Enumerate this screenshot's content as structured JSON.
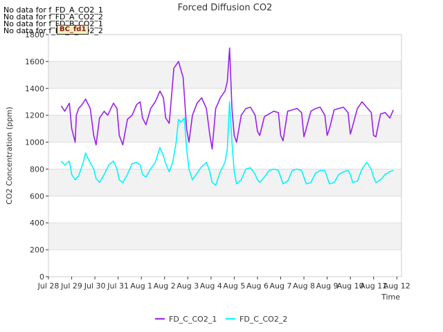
{
  "chart_data": {
    "type": "line",
    "title": "Forced Diffusion CO2",
    "xlabel": "Time",
    "ylabel": "CO2 Concentration (ppm)",
    "ylim": [
      0,
      1800
    ],
    "xlim": [
      0,
      15.2
    ],
    "yticks": [
      0,
      200,
      400,
      600,
      800,
      1000,
      1200,
      1400,
      1600,
      1800
    ],
    "xticks": [
      {
        "pos": 0,
        "label": "Jul 28"
      },
      {
        "pos": 1,
        "label": "Jul 29"
      },
      {
        "pos": 2,
        "label": "Jul 30"
      },
      {
        "pos": 3,
        "label": "Jul 31"
      },
      {
        "pos": 4,
        "label": "Aug 1"
      },
      {
        "pos": 5,
        "label": "Aug 2"
      },
      {
        "pos": 6,
        "label": "Aug 3"
      },
      {
        "pos": 7,
        "label": "Aug 4"
      },
      {
        "pos": 8,
        "label": "Aug 5"
      },
      {
        "pos": 9,
        "label": "Aug 6"
      },
      {
        "pos": 10,
        "label": "Aug 7"
      },
      {
        "pos": 11,
        "label": "Aug 8"
      },
      {
        "pos": 12,
        "label": "Aug 9"
      },
      {
        "pos": 13,
        "label": "Aug 10"
      },
      {
        "pos": 14,
        "label": "Aug 11"
      },
      {
        "pos": 15,
        "label": "Aug 12"
      }
    ],
    "series": [
      {
        "name": "FD_C_CO2_1",
        "color": "#9b1fe8",
        "x": [
          0.55,
          0.7,
          0.9,
          1.0,
          1.15,
          1.2,
          1.3,
          1.45,
          1.6,
          1.8,
          1.95,
          2.05,
          2.2,
          2.4,
          2.55,
          2.8,
          2.95,
          3.05,
          3.2,
          3.4,
          3.6,
          3.8,
          3.95,
          4.05,
          4.2,
          4.4,
          4.6,
          4.8,
          4.95,
          5.05,
          5.2,
          5.4,
          5.6,
          5.8,
          5.95,
          6.05,
          6.2,
          6.4,
          6.6,
          6.8,
          6.95,
          7.05,
          7.2,
          7.4,
          7.6,
          7.7,
          7.8,
          7.9,
          8.0,
          8.1,
          8.3,
          8.5,
          8.7,
          8.9,
          9.0,
          9.1,
          9.3,
          9.5,
          9.7,
          9.9,
          10.0,
          10.1,
          10.3,
          10.5,
          10.7,
          10.9,
          11.0,
          11.1,
          11.3,
          11.5,
          11.7,
          11.9,
          12.0,
          12.1,
          12.3,
          12.5,
          12.7,
          12.9,
          13.0,
          13.1,
          13.3,
          13.5,
          13.7,
          13.9,
          14.0,
          14.1,
          14.3,
          14.5,
          14.7,
          14.85
        ],
        "y": [
          1270,
          1230,
          1290,
          1100,
          1000,
          1200,
          1250,
          1280,
          1320,
          1250,
          1050,
          980,
          1180,
          1230,
          1200,
          1290,
          1250,
          1050,
          980,
          1170,
          1200,
          1280,
          1300,
          1180,
          1130,
          1250,
          1300,
          1380,
          1330,
          1180,
          1140,
          1550,
          1600,
          1480,
          1100,
          1000,
          1200,
          1290,
          1330,
          1250,
          1050,
          950,
          1250,
          1330,
          1380,
          1450,
          1700,
          1250,
          1050,
          1000,
          1200,
          1250,
          1260,
          1200,
          1080,
          1050,
          1190,
          1210,
          1230,
          1220,
          1050,
          1010,
          1230,
          1240,
          1250,
          1220,
          1040,
          1100,
          1230,
          1250,
          1260,
          1200,
          1050,
          1100,
          1240,
          1250,
          1260,
          1220,
          1060,
          1120,
          1250,
          1300,
          1260,
          1220,
          1050,
          1040,
          1210,
          1220,
          1180,
          1240
        ]
      },
      {
        "name": "FD_C_CO2_2",
        "color": "#00f5ff",
        "x": [
          0.55,
          0.7,
          0.9,
          1.0,
          1.15,
          1.3,
          1.5,
          1.6,
          1.7,
          1.95,
          2.05,
          2.2,
          2.4,
          2.6,
          2.8,
          2.95,
          3.05,
          3.2,
          3.4,
          3.6,
          3.8,
          3.95,
          4.05,
          4.2,
          4.4,
          4.6,
          4.8,
          4.95,
          5.05,
          5.2,
          5.35,
          5.5,
          5.6,
          5.7,
          5.85,
          5.95,
          6.05,
          6.2,
          6.4,
          6.6,
          6.8,
          6.95,
          7.05,
          7.2,
          7.4,
          7.6,
          7.7,
          7.8,
          7.9,
          8.0,
          8.1,
          8.3,
          8.5,
          8.7,
          8.9,
          9.0,
          9.1,
          9.3,
          9.5,
          9.7,
          9.9,
          10.0,
          10.1,
          10.3,
          10.5,
          10.7,
          10.9,
          11.0,
          11.1,
          11.3,
          11.5,
          11.7,
          11.9,
          12.0,
          12.1,
          12.3,
          12.5,
          12.7,
          12.9,
          13.0,
          13.1,
          13.3,
          13.5,
          13.7,
          13.9,
          14.0,
          14.1,
          14.3,
          14.5,
          14.7,
          14.85
        ],
        "y": [
          860,
          830,
          860,
          760,
          720,
          750,
          850,
          920,
          880,
          800,
          730,
          700,
          760,
          830,
          860,
          800,
          720,
          700,
          760,
          840,
          850,
          830,
          760,
          740,
          800,
          850,
          960,
          900,
          840,
          780,
          850,
          1000,
          1170,
          1150,
          1180,
          950,
          800,
          720,
          770,
          820,
          850,
          780,
          700,
          680,
          780,
          850,
          950,
          1300,
          1000,
          780,
          690,
          720,
          800,
          810,
          760,
          720,
          700,
          740,
          790,
          800,
          790,
          740,
          690,
          710,
          790,
          800,
          790,
          740,
          690,
          700,
          770,
          790,
          790,
          740,
          690,
          700,
          760,
          780,
          790,
          760,
          700,
          710,
          800,
          850,
          800,
          740,
          700,
          720,
          760,
          780,
          790
        ]
      }
    ],
    "legend": [
      {
        "label": "FD_C_CO2_1",
        "color": "#9b1fe8"
      },
      {
        "label": "FD_C_CO2_2",
        "color": "#00f5ff"
      }
    ],
    "annotations": [
      "No data for f_FD_A_CO2_1",
      "No data for f_FD_A_CO2_2",
      "No data for f_FD_B_CO2_1",
      "No data for f_FD_B_CO2_2"
    ],
    "badge": "BC_fd1"
  }
}
